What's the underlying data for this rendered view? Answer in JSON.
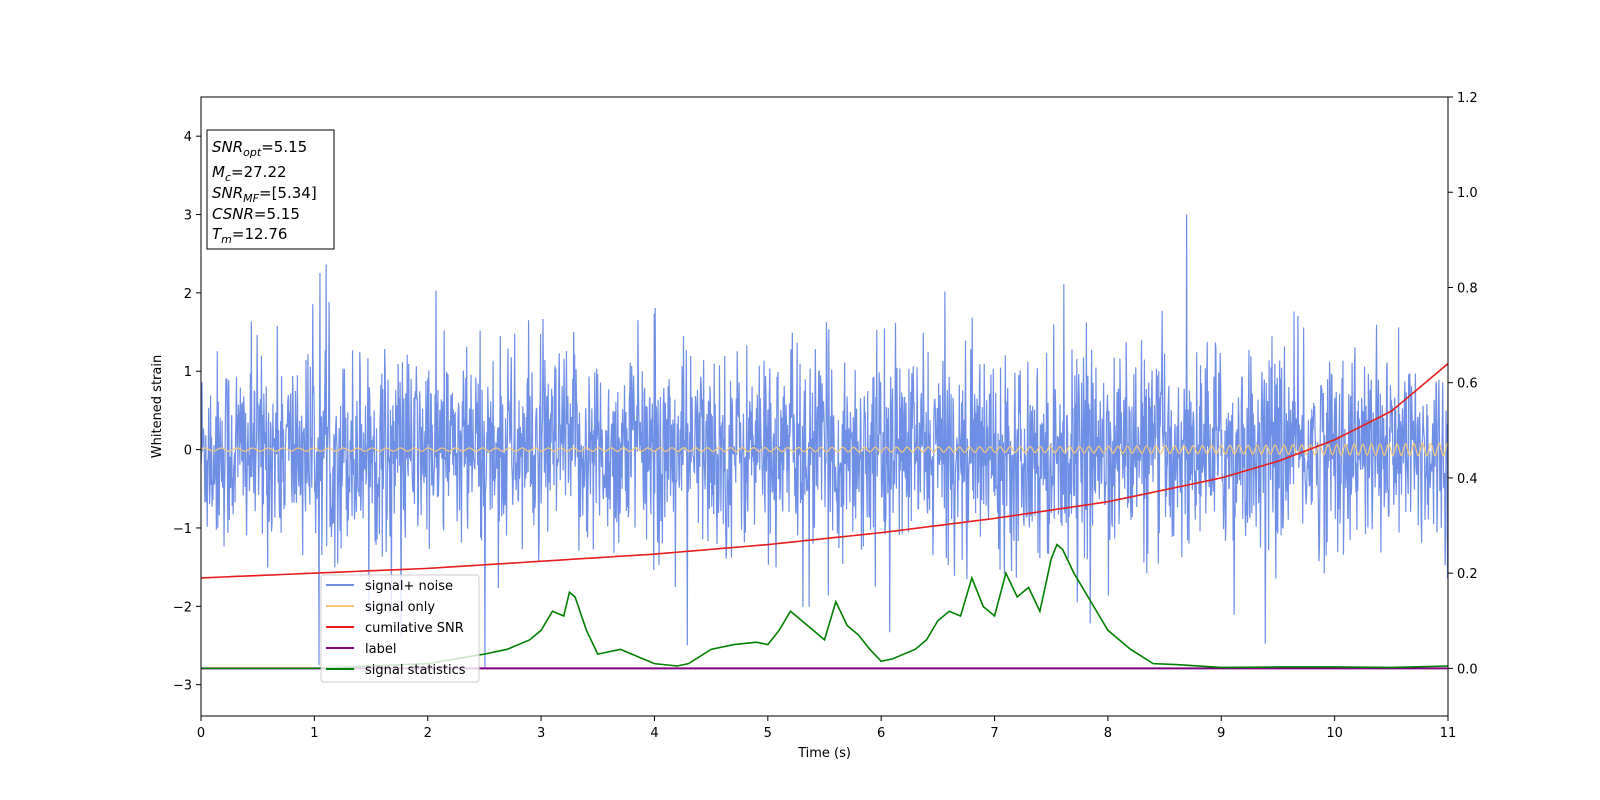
{
  "chart_data": {
    "type": "line",
    "title": "",
    "xlabel": "Time (s)",
    "ylabel": "Whitened strain",
    "xlim": [
      0,
      11
    ],
    "ylim": [
      -3.4,
      4.5
    ],
    "y2lim": [
      -0.1,
      1.2
    ],
    "xticks": [
      0,
      1,
      2,
      3,
      4,
      5,
      6,
      7,
      8,
      9,
      10,
      11
    ],
    "yticks": [
      -3,
      -2,
      -1,
      0,
      1,
      2,
      3,
      4
    ],
    "y2ticks": [
      0.0,
      0.2,
      0.4,
      0.6,
      0.8,
      1.0,
      1.2
    ],
    "xtick_labels": [
      "0",
      "1",
      "2",
      "3",
      "4",
      "5",
      "6",
      "7",
      "8",
      "9",
      "10",
      "11"
    ],
    "ytick_labels": [
      "−3",
      "−2",
      "−1",
      "0",
      "1",
      "2",
      "3",
      "4"
    ],
    "y2tick_labels": [
      "0.0",
      "0.2",
      "0.4",
      "0.6",
      "0.8",
      "1.0",
      "1.2"
    ],
    "grid": false,
    "legend_position": "lower-left",
    "annotation": {
      "lines": [
        {
          "sym": "SNR",
          "sub": "opt",
          "value": "=5.15"
        },
        {
          "sym": "M",
          "sub": "c",
          "value": "=27.22"
        },
        {
          "sym": "SNR",
          "sub": "MF",
          "value": "=[5.34]"
        },
        {
          "sym": "CSNR",
          "sub": "",
          "value": "=5.15"
        },
        {
          "sym": "T",
          "sub": "m",
          "value": "=12.76"
        }
      ]
    },
    "series": [
      {
        "name": "signal+ noise",
        "color": "#6f8fe6",
        "axis": "left",
        "kind": "noise",
        "band": [
          -1.2,
          1.2
        ],
        "peak_max": 3.0,
        "peak_min": -2.8
      },
      {
        "name": "signal only",
        "color": "#f5c97a",
        "axis": "left",
        "kind": "chirp",
        "amp_start": 0.02,
        "amp_end": 0.08
      },
      {
        "name": "cumilative SNR",
        "color": "#e81c1c",
        "axis": "right",
        "x": [
          0,
          1,
          2,
          3,
          4,
          5,
          6,
          7,
          8,
          9,
          9.5,
          10,
          10.5,
          11
        ],
        "values": [
          0.19,
          0.2,
          0.21,
          0.225,
          0.24,
          0.26,
          0.285,
          0.315,
          0.35,
          0.4,
          0.435,
          0.48,
          0.54,
          0.64
        ]
      },
      {
        "name": "label",
        "color": "#800080",
        "axis": "right",
        "x": [
          0,
          11
        ],
        "values": [
          0.0,
          0.0
        ]
      },
      {
        "name": "signal statistics",
        "color": "#008000",
        "axis": "right",
        "x": [
          0,
          1,
          2,
          2.5,
          2.7,
          2.9,
          3.0,
          3.1,
          3.2,
          3.25,
          3.3,
          3.4,
          3.5,
          3.7,
          3.8,
          4.0,
          4.2,
          4.3,
          4.5,
          4.7,
          4.9,
          5.0,
          5.1,
          5.2,
          5.3,
          5.4,
          5.5,
          5.6,
          5.7,
          5.8,
          5.9,
          6.0,
          6.1,
          6.3,
          6.4,
          6.5,
          6.6,
          6.7,
          6.8,
          6.9,
          7.0,
          7.1,
          7.2,
          7.3,
          7.4,
          7.5,
          7.55,
          7.6,
          7.7,
          7.8,
          7.9,
          8.0,
          8.2,
          8.4,
          8.6,
          9.0,
          9.5,
          10.0,
          10.5,
          11.0
        ],
        "values": [
          0.0,
          0.0,
          0.01,
          0.03,
          0.04,
          0.06,
          0.08,
          0.12,
          0.11,
          0.16,
          0.15,
          0.08,
          0.03,
          0.04,
          0.03,
          0.01,
          0.005,
          0.01,
          0.04,
          0.05,
          0.055,
          0.05,
          0.08,
          0.12,
          0.1,
          0.08,
          0.06,
          0.14,
          0.09,
          0.07,
          0.04,
          0.015,
          0.02,
          0.04,
          0.06,
          0.1,
          0.12,
          0.11,
          0.19,
          0.13,
          0.11,
          0.2,
          0.15,
          0.17,
          0.12,
          0.23,
          0.26,
          0.25,
          0.2,
          0.16,
          0.12,
          0.08,
          0.04,
          0.01,
          0.008,
          0.002,
          0.003,
          0.003,
          0.002,
          0.005
        ]
      }
    ]
  }
}
